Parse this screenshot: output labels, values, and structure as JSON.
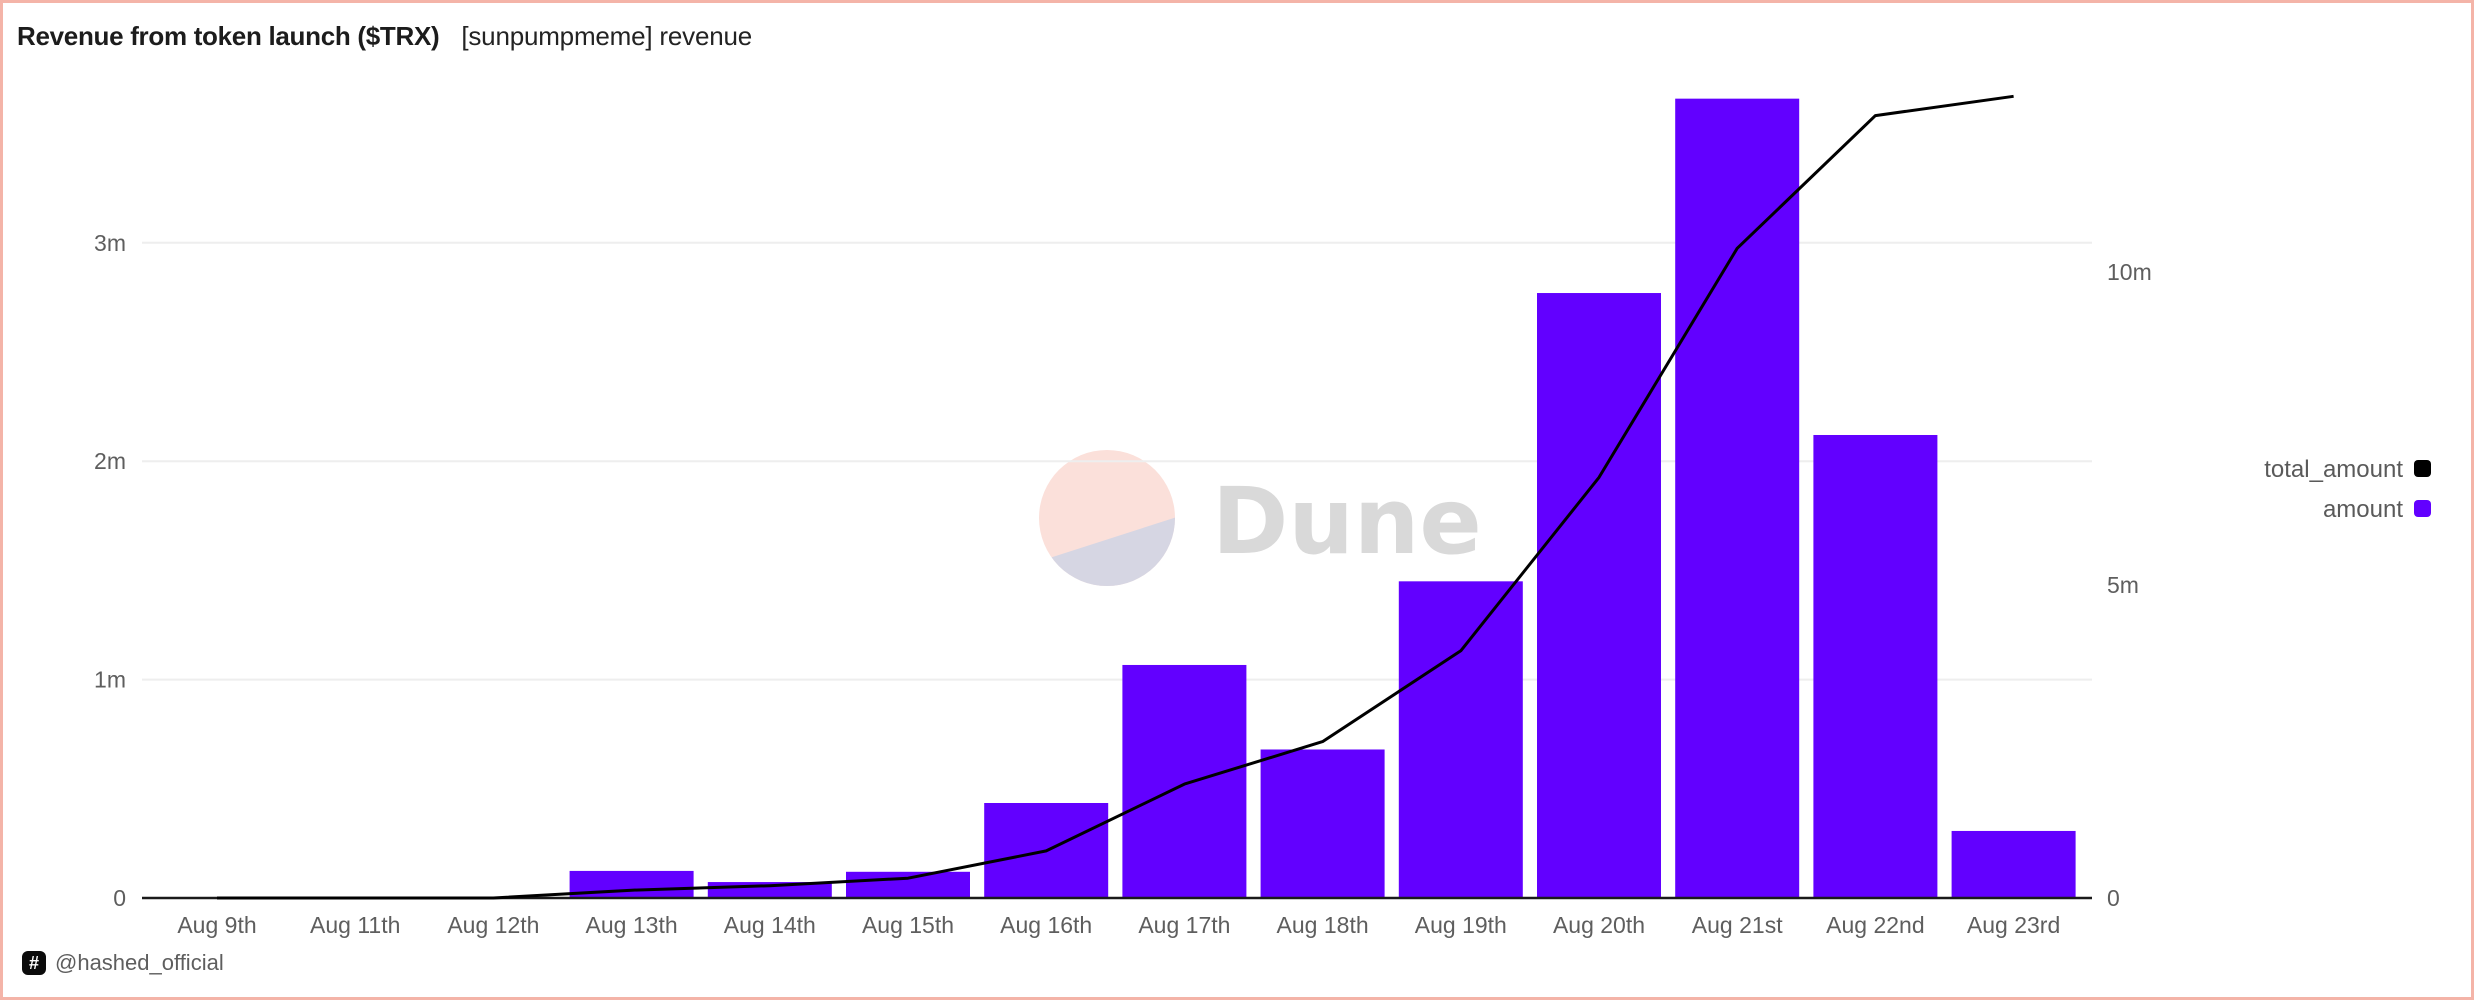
{
  "header": {
    "title": "Revenue from token launch ($TRX)",
    "subtitle": "[sunpumpmeme] revenue"
  },
  "footer": {
    "logo_glyph": "#",
    "handle": "@hashed_official"
  },
  "watermark": {
    "text": "Dune",
    "circle_top_color": "#fbe0da",
    "circle_bottom_color": "#d6d6e3"
  },
  "colors": {
    "bar": "#6200ff",
    "line": "#000000",
    "grid": "#eeeeee",
    "axis": "#1a1a1a",
    "border": "#f4b4a8"
  },
  "chart_data": {
    "type": "bar+line",
    "title": "Revenue from token launch ($TRX)",
    "subtitle": "[sunpumpmeme] revenue",
    "xlabel": "",
    "ylabel": "",
    "categories": [
      "Aug 9th",
      "Aug 11th",
      "Aug 12th",
      "Aug 13th",
      "Aug 14th",
      "Aug 15th",
      "Aug 16th",
      "Aug 17th",
      "Aug 18th",
      "Aug 19th",
      "Aug 20th",
      "Aug 21st",
      "Aug 22nd",
      "Aug 23rd"
    ],
    "series": [
      {
        "name": "amount",
        "type": "bar",
        "axis": "left",
        "color": "#6200ff",
        "values": [
          0,
          0,
          0,
          124000,
          73000,
          120000,
          435000,
          1067000,
          680000,
          1450000,
          2770000,
          3660000,
          2120000,
          307000
        ]
      },
      {
        "name": "total_amount",
        "type": "line",
        "axis": "right",
        "color": "#000000",
        "values": [
          0,
          0,
          0,
          124000,
          197000,
          317000,
          752000,
          1819000,
          2499000,
          3949000,
          6719000,
          10379000,
          12499000,
          12806000
        ]
      }
    ],
    "y_left": {
      "ylim": [
        0,
        3700000
      ],
      "ticks": [
        0,
        1000000,
        2000000,
        3000000
      ],
      "tick_labels": [
        "0",
        "1m",
        "2m",
        "3m"
      ]
    },
    "y_right": {
      "ylim": [
        0,
        12900000
      ],
      "ticks": [
        0,
        5000000,
        10000000
      ],
      "tick_labels": [
        "0",
        "5m",
        "10m"
      ]
    },
    "grid": true,
    "legend": {
      "position": "right",
      "entries": [
        {
          "label": "total_amount",
          "color": "#000000"
        },
        {
          "label": "amount",
          "color": "#6200ff"
        }
      ]
    }
  }
}
